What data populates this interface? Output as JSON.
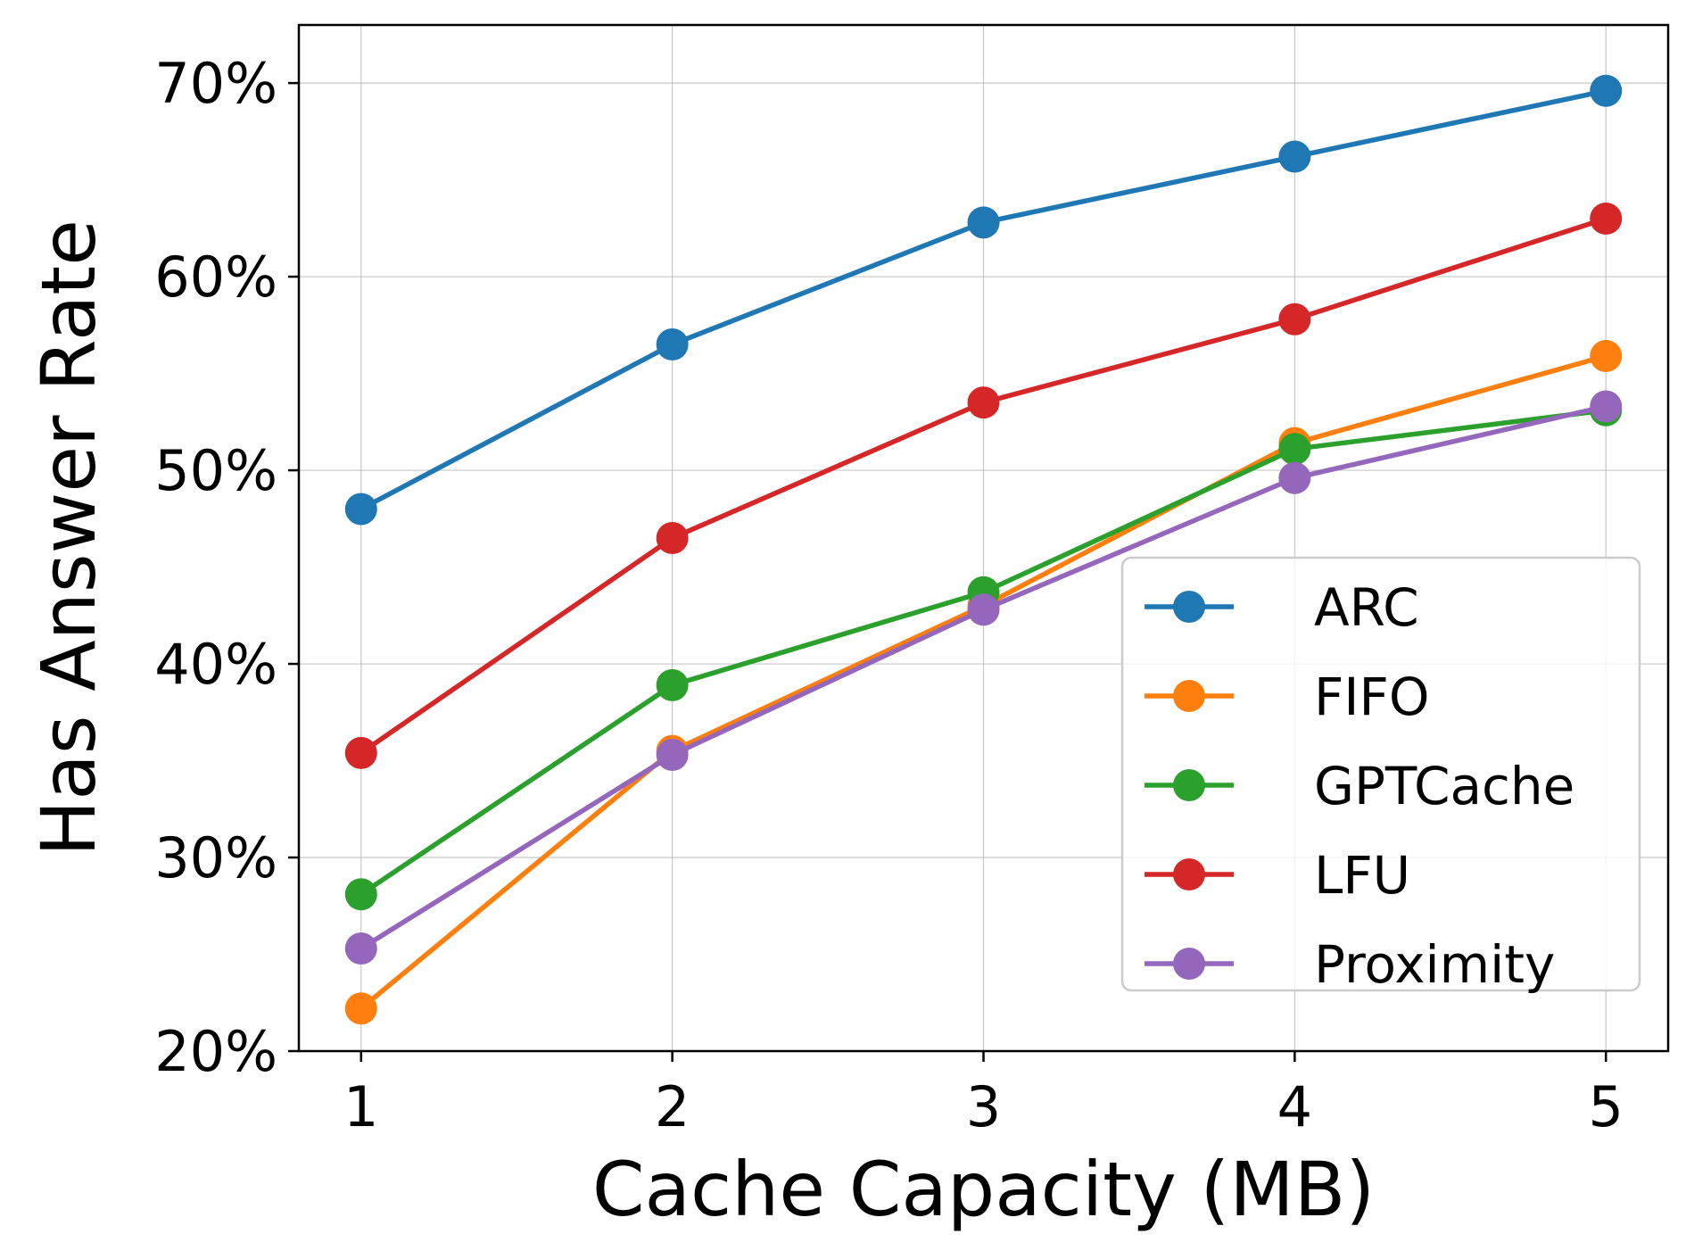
{
  "chart_data": {
    "type": "line",
    "title": "",
    "xlabel": "Cache Capacity (MB)",
    "ylabel": "Has Answer Rate",
    "x": [
      1,
      2,
      3,
      4,
      5
    ],
    "xticks": [
      "1",
      "2",
      "3",
      "4",
      "5"
    ],
    "xlim": [
      0.8,
      5.2
    ],
    "ylim": [
      20,
      73
    ],
    "yticks": [
      20,
      30,
      40,
      50,
      60,
      70
    ],
    "ytick_labels": [
      "20%",
      "30%",
      "40%",
      "50%",
      "60%",
      "70%"
    ],
    "grid": true,
    "legend_position": "lower-right",
    "series": [
      {
        "name": "ARC",
        "color": "#1f77b4",
        "values": [
          48.0,
          56.5,
          62.8,
          66.2,
          69.6
        ]
      },
      {
        "name": "FIFO",
        "color": "#ff7f0e",
        "values": [
          22.2,
          35.5,
          43.0,
          51.4,
          55.9
        ]
      },
      {
        "name": "GPTCache",
        "color": "#2ca02c",
        "values": [
          28.1,
          38.9,
          43.7,
          51.1,
          53.1
        ]
      },
      {
        "name": "LFU",
        "color": "#d62728",
        "values": [
          35.4,
          46.5,
          53.5,
          57.8,
          63.0
        ]
      },
      {
        "name": "Proximity",
        "color": "#9467bd",
        "values": [
          25.3,
          35.3,
          42.8,
          49.6,
          53.3
        ]
      }
    ]
  }
}
